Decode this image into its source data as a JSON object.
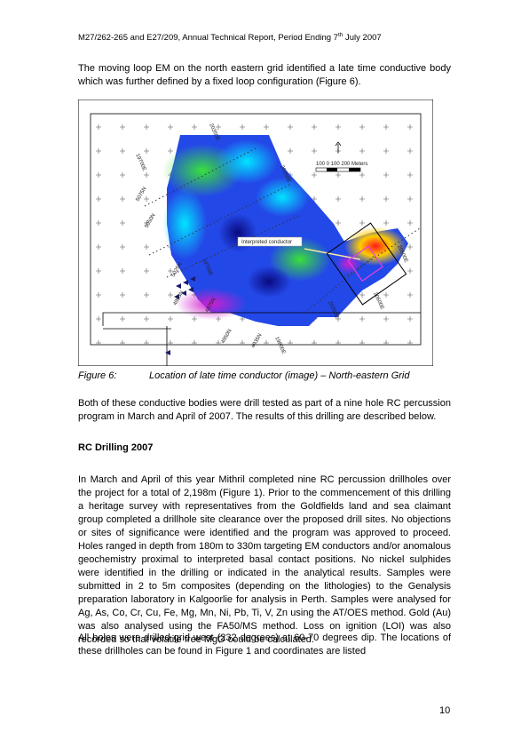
{
  "header": {
    "before": "M27/262-265 and E27/209, Annual Technical Report, Period Ending 7",
    "sup": "th",
    "after": " July 2007"
  },
  "paragraphs": [
    "The moving loop EM on the north eastern grid identified a late time conductive body which was further defined by a fixed loop configuration (Figure 6).",
    "Both of these conductive bodies were drill tested as part of a nine hole RC percussion program in March and April of 2007.  The results of this drilling are described below."
  ],
  "figure": {
    "map_labels": [
      "20350E",
      "19700E",
      "5075N",
      "5050N",
      "5025N",
      "19700E",
      "4995N",
      "4975N",
      "4950N",
      "4935N",
      "19800E",
      "20350E",
      "20600E",
      "20300E",
      "20500E",
      "Interpreted conductor",
      "100   0   100  200 Meters"
    ],
    "caption_number": "Figure 6:",
    "caption_text": "Location of late time conductor (image) – North-eastern Grid"
  },
  "section": {
    "heading": "RC Drilling 2007",
    "paragraphs": [
      "In March and April of this year Mithril completed nine RC percussion drillholes over the project for a total of 2,198m (Figure 1).  Prior to the commencement of this drilling a heritage survey with representatives from the Goldfields land and sea claimant group completed a drillhole site clearance over the proposed drill sites.  No objections or sites of significance were identified and the program was approved to proceed.  Holes ranged in depth from 180m to 330m targeting EM conductors and/or anomalous geochemistry proximal to interpreted basal contact positions.  No nickel sulphides were identified in the drilling or indicated in the analytical results.  Samples were submitted in 2 to 5m composites (depending on the lithologies) to the Genalysis preparation laboratory in Kalgoorlie for analysis in Perth.  Samples were analysed for Ag, As, Co, Cr, Cu, Fe, Mg, Mn, Ni, Pb, Ti, V, Zn using the AT/OES method.  Gold (Au) was also analysed using the FA50/MS method.  Loss on ignition (LOI) was also recorded so that volatile free MgO could be calculated.",
      "All holes were drilled grid west (232 degrees) at 60-70 degrees dip.  The locations of these drillholes can be found in Figure 1 and coordinates are listed"
    ]
  },
  "page_number": "10"
}
